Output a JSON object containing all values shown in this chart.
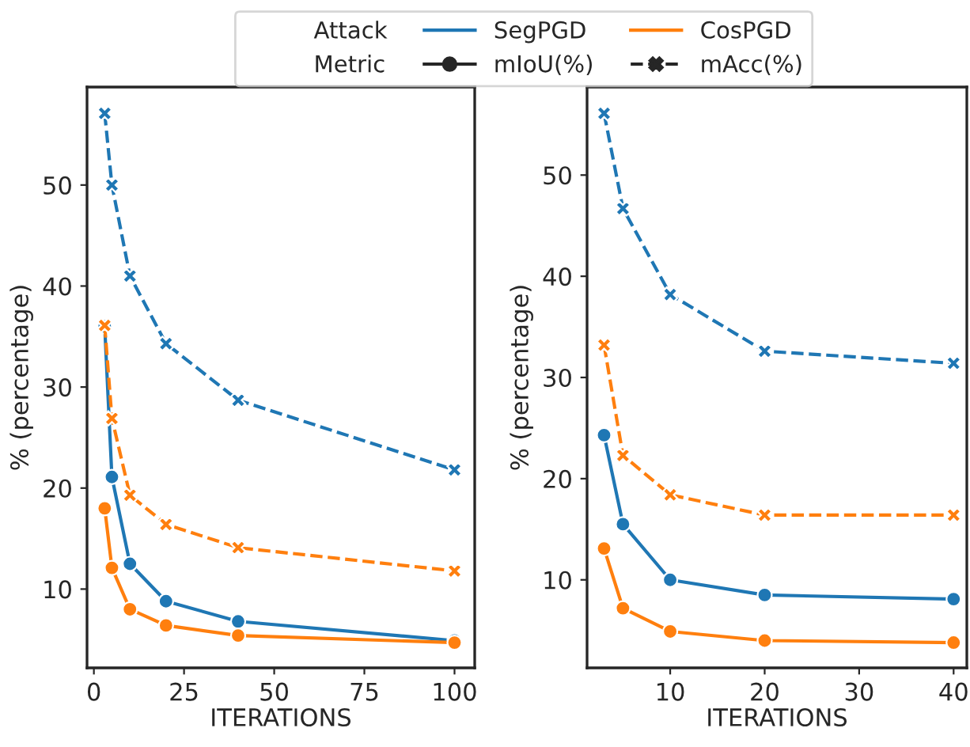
{
  "chart_data": [
    {
      "type": "line",
      "xlabel": "ITERATIONS",
      "ylabel": "% (percentage)",
      "x": [
        3,
        5,
        10,
        20,
        40,
        100
      ],
      "xlim": [
        -1.9,
        105.6
      ],
      "xticks": [
        0,
        25,
        50,
        75,
        100
      ],
      "ylim": [
        2.2,
        59.7
      ],
      "yticks": [
        10,
        20,
        30,
        40,
        50
      ],
      "grid": false,
      "legend": "top",
      "legend_title": [
        "Attack",
        "Metric"
      ],
      "annotations": [
        "mIoU(%)",
        "mAcc(%)"
      ],
      "series": [
        {
          "name": "SegPGD",
          "color": "#1f77b4",
          "marker": "circle",
          "line_style": "solid",
          "values": [
            36.0,
            21.1,
            12.5,
            8.8,
            6.8,
            4.9
          ]
        },
        {
          "name": "CosPGD",
          "color": "#ff7f0e",
          "marker": "circle",
          "line_style": "solid",
          "values": [
            18.0,
            12.1,
            8.0,
            6.4,
            5.4,
            4.7
          ]
        },
        {
          "color": "#1f77b4",
          "marker": "cross",
          "line_style": "dashed",
          "values": [
            57.1,
            50.0,
            41.0,
            34.3,
            28.7,
            21.8
          ]
        },
        {
          "color": "#ff7f0e",
          "marker": "cross",
          "line_style": "dashed",
          "values": [
            36.1,
            26.9,
            19.3,
            16.4,
            14.1,
            11.8
          ]
        }
      ]
    },
    {
      "type": "line",
      "xlabel": "ITERATIONS",
      "ylabel": "% (percentage)",
      "x": [
        3,
        5,
        10,
        20,
        40
      ],
      "xlim": [
        1.2,
        41.4
      ],
      "xticks": [
        10,
        20,
        30,
        40
      ],
      "ylim": [
        1.3,
        58.7
      ],
      "yticks": [
        10,
        20,
        30,
        40,
        50
      ],
      "grid": false,
      "series": [
        {
          "color": "#1f77b4",
          "marker": "circle",
          "line_style": "solid",
          "values": [
            24.3,
            15.5,
            10.0,
            8.5,
            8.1
          ]
        },
        {
          "color": "#ff7f0e",
          "marker": "circle",
          "line_style": "solid",
          "values": [
            13.1,
            7.2,
            4.9,
            4.0,
            3.8
          ]
        },
        {
          "color": "#1f77b4",
          "marker": "cross",
          "line_style": "dashed",
          "values": [
            56.1,
            46.7,
            38.2,
            32.6,
            31.4
          ]
        },
        {
          "color": "#ff7f0e",
          "marker": "cross",
          "line_style": "dashed",
          "values": [
            33.2,
            22.3,
            18.4,
            16.4,
            16.4
          ]
        }
      ]
    }
  ]
}
